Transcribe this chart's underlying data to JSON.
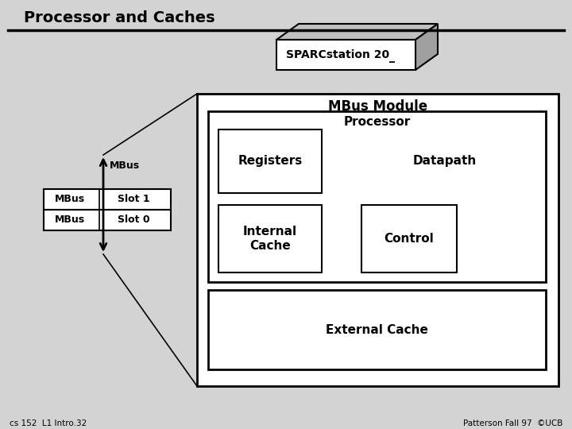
{
  "title": "Processor and Caches",
  "bg_color": "#d3d3d3",
  "white": "#ffffff",
  "black": "#000000",
  "gray_top": "#c0c0c0",
  "gray_side": "#a0a0a0",
  "footer_left": "cs 152  L1 Intro.32",
  "footer_right": "Patterson Fall 97  ©UCB",
  "sparcstation_label": "SPARCstation 20",
  "sparcstation_cursor": "_",
  "mbus_module_label": "MBus Module",
  "processor_label": "Processor",
  "registers_label": "Registers",
  "datapath_label": "Datapath",
  "internal_cache_label": "Internal\nCache",
  "control_label": "Control",
  "external_cache_label": "External Cache",
  "mbus_arrow_label": "MBus",
  "slot1_left": "MBus",
  "slot1_right": "Slot 1",
  "slot0_left": "MBus",
  "slot0_right": "Slot 0"
}
